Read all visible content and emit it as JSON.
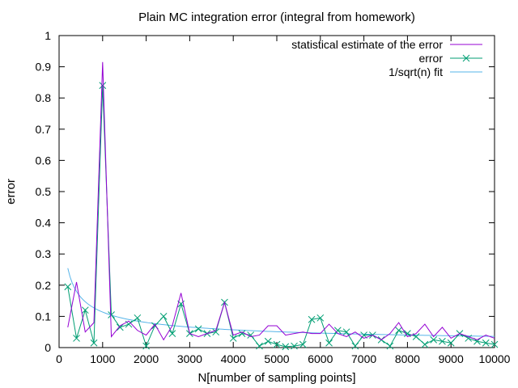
{
  "chart_data": {
    "type": "line",
    "title": "Plain MC integration error (integral from homework)",
    "xlabel": "N[number of sampling points]",
    "ylabel": "error",
    "xlim": [
      0,
      10000
    ],
    "ylim": [
      0,
      1
    ],
    "xticks": [
      0,
      1000,
      2000,
      3000,
      4000,
      5000,
      6000,
      7000,
      8000,
      9000,
      10000
    ],
    "yticks": [
      0,
      0.1,
      0.2,
      0.3,
      0.4,
      0.5,
      0.6,
      0.7,
      0.8,
      0.9,
      1
    ],
    "xtick_labels": [
      "0",
      "1000",
      "2000",
      "3000",
      "4000",
      "5000",
      "6000",
      "7000",
      "8000",
      "9000",
      "10000"
    ],
    "ytick_labels": [
      "0",
      "0.1",
      "0.2",
      "0.3",
      "0.4",
      "0.5",
      "0.6",
      "0.7",
      "0.8",
      "0.9",
      "1"
    ],
    "grid": false,
    "legend_position": "top-right",
    "series": [
      {
        "name": "statistical estimate of the error",
        "color": "#9400d3",
        "marker": "none",
        "x": [
          200,
          400,
          600,
          800,
          1000,
          1200,
          1400,
          1600,
          1800,
          2000,
          2200,
          2400,
          2600,
          2800,
          3000,
          3200,
          3400,
          3600,
          3800,
          4000,
          4200,
          4400,
          4600,
          4800,
          5000,
          5200,
          5400,
          5600,
          5800,
          6000,
          6200,
          6400,
          6600,
          6800,
          7000,
          7200,
          7400,
          7600,
          7800,
          8000,
          8200,
          8400,
          8600,
          8800,
          9000,
          9200,
          9400,
          9600,
          9800,
          10000
        ],
        "y": [
          0.065,
          0.21,
          0.05,
          0.08,
          0.915,
          0.035,
          0.07,
          0.085,
          0.055,
          0.04,
          0.075,
          0.025,
          0.07,
          0.175,
          0.045,
          0.035,
          0.045,
          0.055,
          0.145,
          0.04,
          0.05,
          0.035,
          0.04,
          0.07,
          0.07,
          0.04,
          0.045,
          0.05,
          0.045,
          0.045,
          0.075,
          0.045,
          0.035,
          0.05,
          0.03,
          0.04,
          0.025,
          0.045,
          0.08,
          0.035,
          0.045,
          0.075,
          0.035,
          0.065,
          0.03,
          0.045,
          0.035,
          0.025,
          0.04,
          0.03
        ]
      },
      {
        "name": "error",
        "color": "#009e73",
        "marker": "x",
        "x": [
          200,
          400,
          600,
          800,
          1000,
          1200,
          1400,
          1600,
          1800,
          2000,
          2200,
          2400,
          2600,
          2800,
          3000,
          3200,
          3400,
          3600,
          3800,
          4000,
          4200,
          4400,
          4600,
          4800,
          5000,
          5200,
          5400,
          5600,
          5800,
          6000,
          6200,
          6400,
          6600,
          6800,
          7000,
          7200,
          7400,
          7600,
          7800,
          8000,
          8200,
          8400,
          8600,
          8800,
          9000,
          9200,
          9400,
          9600,
          9800,
          10000
        ],
        "y": [
          0.195,
          0.03,
          0.12,
          0.015,
          0.84,
          0.105,
          0.065,
          0.075,
          0.095,
          0.005,
          0.07,
          0.1,
          0.045,
          0.14,
          0.045,
          0.06,
          0.045,
          0.05,
          0.145,
          0.03,
          0.045,
          0.04,
          0.005,
          0.02,
          0.01,
          0.003,
          0.005,
          0.01,
          0.09,
          0.095,
          0.015,
          0.055,
          0.05,
          0.005,
          0.04,
          0.04,
          0.025,
          0.005,
          0.055,
          0.045,
          0.035,
          0.01,
          0.025,
          0.02,
          0.015,
          0.045,
          0.03,
          0.02,
          0.015,
          0.01
        ]
      },
      {
        "name": "1/sqrt(n) fit",
        "color": "#56b4e9",
        "marker": "none",
        "function": "a/sqrt(x)",
        "a": 3.6
      }
    ]
  }
}
